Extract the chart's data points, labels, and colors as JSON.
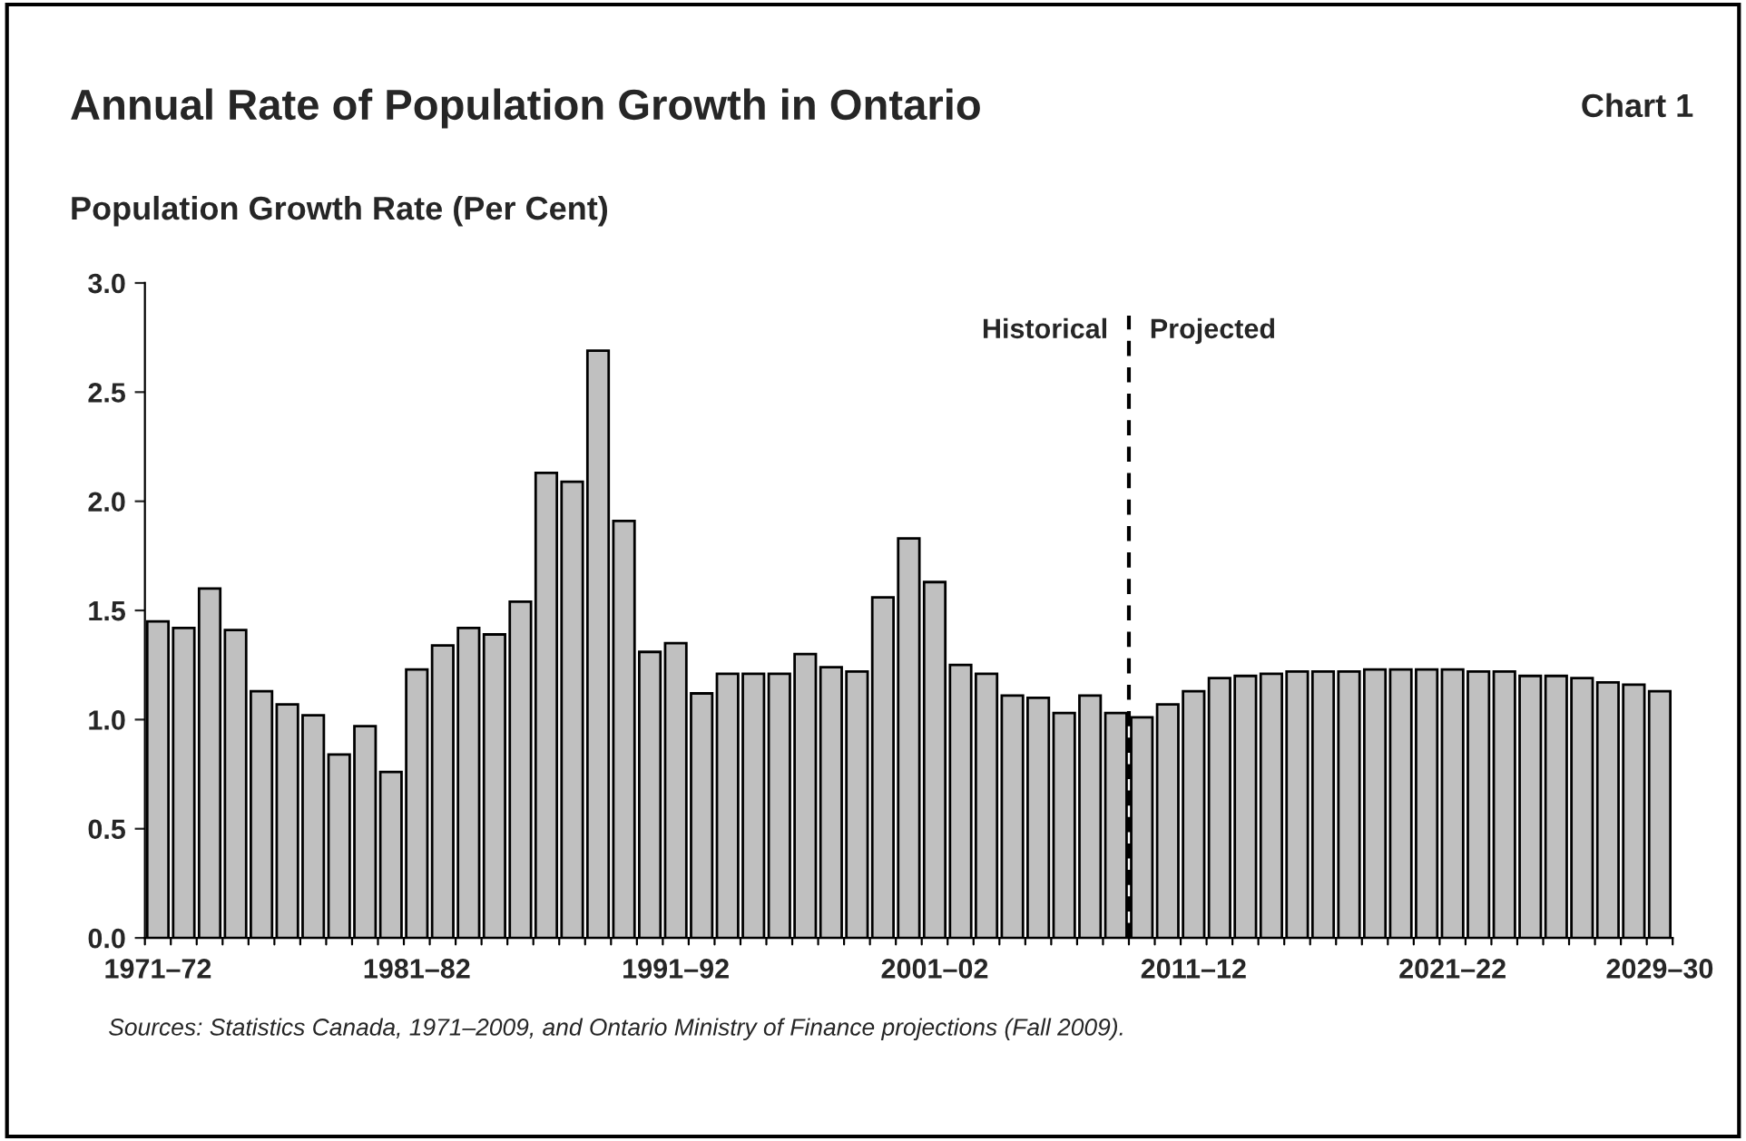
{
  "chart_data": {
    "type": "bar",
    "title": "Annual Rate of Population Growth in Ontario",
    "subtitle": "Chart 1",
    "ylabel": "Population Growth Rate (Per Cent)",
    "categories": [
      "1971–72",
      null,
      null,
      null,
      null,
      null,
      null,
      null,
      null,
      null,
      "1981–82",
      null,
      null,
      null,
      null,
      null,
      null,
      null,
      null,
      null,
      "1991–92",
      null,
      null,
      null,
      null,
      null,
      null,
      null,
      null,
      null,
      "2001–02",
      null,
      null,
      null,
      null,
      null,
      null,
      null,
      null,
      null,
      "2011–12",
      null,
      null,
      null,
      null,
      null,
      null,
      null,
      null,
      null,
      "2021–22",
      null,
      null,
      null,
      null,
      null,
      null,
      null,
      "2029–30"
    ],
    "values": [
      1.45,
      1.42,
      1.6,
      1.41,
      1.13,
      1.07,
      1.02,
      0.84,
      0.97,
      0.76,
      1.23,
      1.34,
      1.42,
      1.39,
      1.54,
      2.13,
      2.09,
      2.69,
      1.91,
      1.31,
      1.35,
      1.12,
      1.21,
      1.21,
      1.21,
      1.3,
      1.24,
      1.22,
      1.56,
      1.83,
      1.63,
      1.25,
      1.21,
      1.11,
      1.1,
      1.03,
      1.11,
      1.03,
      1.01,
      1.07,
      1.13,
      1.19,
      1.2,
      1.21,
      1.22,
      1.22,
      1.22,
      1.23,
      1.23,
      1.23,
      1.23,
      1.22,
      1.22,
      1.2,
      1.2,
      1.19,
      1.17,
      1.16,
      1.13
    ],
    "color": "#c0c0c0",
    "ylim": [
      0,
      3
    ],
    "yticks": [
      {
        "value": 0,
        "label": "0.0"
      },
      {
        "value": 0.5,
        "label": "0.5"
      },
      {
        "value": 1,
        "label": "1.0"
      },
      {
        "value": 1.5,
        "label": "1.5"
      },
      {
        "value": 2,
        "label": "2.0"
      },
      {
        "value": 2.5,
        "label": "2.5"
      },
      {
        "value": 3,
        "label": "3.0"
      }
    ],
    "annotations": [
      "Historical",
      "Projected",
      "Sources: Statistics Canada, 1971–2009, and Ontario Ministry of Finance projections (Fall 2009)."
    ],
    "grid": false,
    "legend": false
  }
}
